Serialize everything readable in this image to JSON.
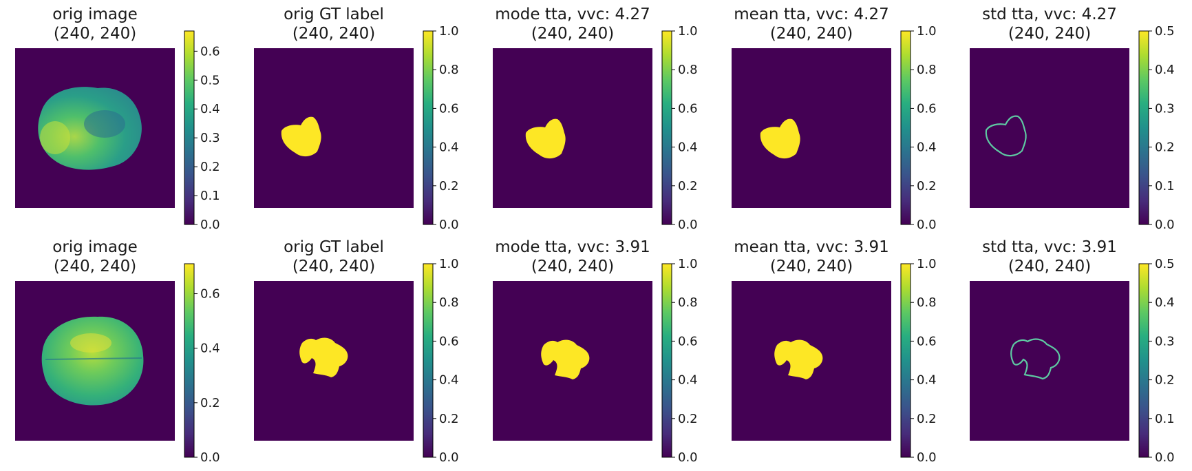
{
  "figure": {
    "description_rows": 2,
    "columns": 5
  },
  "colors": {
    "background": "#440154",
    "mask": "#fde725",
    "brain_base": "#2a9d89",
    "brain_light": "#6cce59",
    "brain_dark": "#2c6e8e"
  },
  "chart_data": {
    "type": "heatmap",
    "colormap": "viridis",
    "rows": [
      {
        "panels": [
          {
            "kind": "image",
            "title_line1": "orig image",
            "title_line2": "(240, 240)",
            "colorbar": {
              "range": [
                0,
                0.67
              ],
              "ticks": [
                0.0,
                0.1,
                0.2,
                0.3,
                0.4,
                0.5,
                0.6
              ],
              "labels": [
                "0.0",
                "0.1",
                "0.2",
                "0.3",
                "0.4",
                "0.5",
                "0.6"
              ]
            }
          },
          {
            "kind": "mask",
            "title_line1": "orig GT label",
            "title_line2": "(240, 240)",
            "colorbar": {
              "range": [
                0,
                1.0
              ],
              "ticks": [
                0.0,
                0.2,
                0.4,
                0.6,
                0.8,
                1.0
              ],
              "labels": [
                "0.0",
                "0.2",
                "0.4",
                "0.6",
                "0.8",
                "1.0"
              ]
            }
          },
          {
            "kind": "mask",
            "title_line1": "mode tta, vvc: 4.27",
            "title_line2": "(240, 240)",
            "colorbar": {
              "range": [
                0,
                1.0
              ],
              "ticks": [
                0.0,
                0.2,
                0.4,
                0.6,
                0.8,
                1.0
              ],
              "labels": [
                "0.0",
                "0.2",
                "0.4",
                "0.6",
                "0.8",
                "1.0"
              ]
            }
          },
          {
            "kind": "mask",
            "title_line1": "mean tta, vvc: 4.27",
            "title_line2": "(240, 240)",
            "colorbar": {
              "range": [
                0,
                1.0
              ],
              "ticks": [
                0.0,
                0.2,
                0.4,
                0.6,
                0.8,
                1.0
              ],
              "labels": [
                "0.0",
                "0.2",
                "0.4",
                "0.6",
                "0.8",
                "1.0"
              ]
            }
          },
          {
            "kind": "outline",
            "title_line1": "std tta, vvc: 4.27",
            "title_line2": "(240, 240)",
            "colorbar": {
              "range": [
                0,
                0.5
              ],
              "ticks": [
                0.0,
                0.1,
                0.2,
                0.3,
                0.4,
                0.5
              ],
              "labels": [
                "0.0",
                "0.1",
                "0.2",
                "0.3",
                "0.4",
                "0.5"
              ]
            }
          }
        ]
      },
      {
        "panels": [
          {
            "kind": "image",
            "title_line1": "orig image",
            "title_line2": "(240, 240)",
            "colorbar": {
              "range": [
                0,
                0.71
              ],
              "ticks": [
                0.0,
                0.2,
                0.4,
                0.6
              ],
              "labels": [
                "0.0",
                "0.2",
                "0.4",
                "0.6"
              ]
            }
          },
          {
            "kind": "mask",
            "title_line1": "orig GT label",
            "title_line2": "(240, 240)",
            "colorbar": {
              "range": [
                0,
                1.0
              ],
              "ticks": [
                0.0,
                0.2,
                0.4,
                0.6,
                0.8,
                1.0
              ],
              "labels": [
                "0.0",
                "0.2",
                "0.4",
                "0.6",
                "0.8",
                "1.0"
              ]
            }
          },
          {
            "kind": "mask",
            "title_line1": "mode tta, vvc: 3.91",
            "title_line2": "(240, 240)",
            "colorbar": {
              "range": [
                0,
                1.0
              ],
              "ticks": [
                0.0,
                0.2,
                0.4,
                0.6,
                0.8,
                1.0
              ],
              "labels": [
                "0.0",
                "0.2",
                "0.4",
                "0.6",
                "0.8",
                "1.0"
              ]
            }
          },
          {
            "kind": "mask",
            "title_line1": "mean tta, vvc: 3.91",
            "title_line2": "(240, 240)",
            "colorbar": {
              "range": [
                0,
                1.0
              ],
              "ticks": [
                0.0,
                0.2,
                0.4,
                0.6,
                0.8,
                1.0
              ],
              "labels": [
                "0.0",
                "0.2",
                "0.4",
                "0.6",
                "0.8",
                "1.0"
              ]
            }
          },
          {
            "kind": "outline",
            "title_line1": "std tta, vvc: 3.91",
            "title_line2": "(240, 240)",
            "colorbar": {
              "range": [
                0,
                0.5
              ],
              "ticks": [
                0.0,
                0.1,
                0.2,
                0.3,
                0.4,
                0.5
              ],
              "labels": [
                "0.0",
                "0.1",
                "0.2",
                "0.3",
                "0.4",
                "0.5"
              ]
            }
          }
        ]
      }
    ]
  }
}
